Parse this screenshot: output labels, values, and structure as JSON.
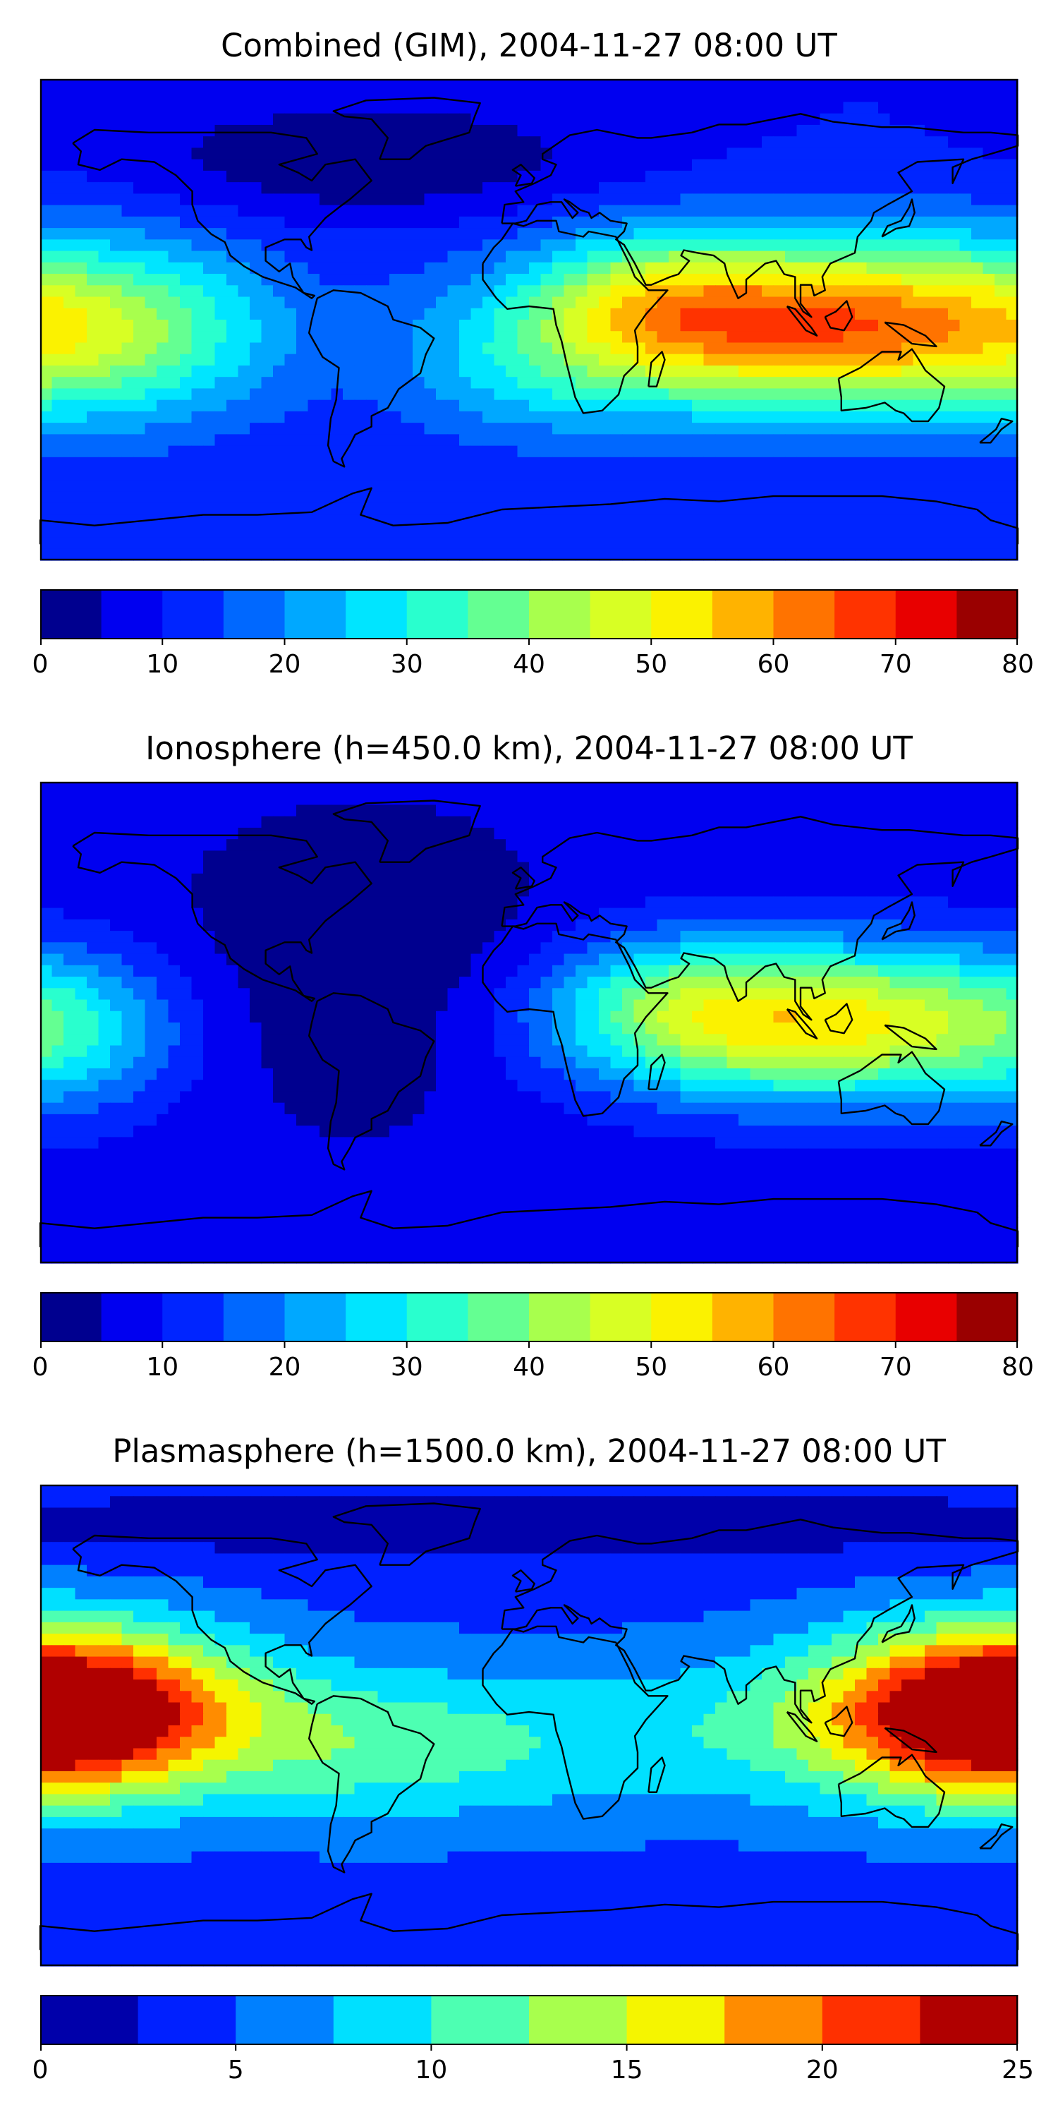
{
  "panels": [
    {
      "title": "Combined (GIM), 2004-11-27 08:00 UT",
      "colorbar": {
        "min": 0,
        "max": 80,
        "step": 5,
        "ticks": [
          "0",
          "10",
          "20",
          "30",
          "40",
          "50",
          "60",
          "70",
          "80"
        ]
      },
      "field": {
        "base": 10,
        "blobs": [
          {
            "lon": 105,
            "lat": -2,
            "amp": 54,
            "slon": 68,
            "slat": 22
          },
          {
            "lon": 45,
            "lat": 8,
            "amp": 14,
            "slon": 30,
            "slat": 18
          },
          {
            "lon": -150,
            "lat": -5,
            "amp": 20,
            "slon": 45,
            "slat": 25
          },
          {
            "lon": 0,
            "lat": -20,
            "amp": 10,
            "slon": 35,
            "slat": 20
          },
          {
            "lon": -60,
            "lat": 60,
            "amp": -10,
            "slon": 60,
            "slat": 15
          }
        ]
      }
    },
    {
      "title": "Ionosphere  (h=450.0 km), 2004-11-27 08:00 UT",
      "colorbar": {
        "min": 0,
        "max": 80,
        "step": 5,
        "ticks": [
          "0",
          "10",
          "20",
          "30",
          "40",
          "50",
          "60",
          "70",
          "80"
        ]
      },
      "field": {
        "base": 7,
        "blobs": [
          {
            "lon": 105,
            "lat": 0,
            "amp": 46,
            "slon": 60,
            "slat": 20
          },
          {
            "lon": 50,
            "lat": 10,
            "amp": 10,
            "slon": 30,
            "slat": 18
          },
          {
            "lon": -170,
            "lat": -5,
            "amp": 12,
            "slon": 30,
            "slat": 22
          },
          {
            "lon": -60,
            "lat": 20,
            "amp": -7,
            "slon": 50,
            "slat": 40
          }
        ]
      }
    },
    {
      "title": "Plasmasphere (h=1500.0 km), 2004-11-27 08:00 UT",
      "colorbar": {
        "min": 0,
        "max": 25,
        "step": 2.5,
        "ticks": [
          "0",
          "5",
          "10",
          "15",
          "20",
          "25"
        ]
      },
      "field": {
        "base": 4,
        "blobs": [
          {
            "lon": -180,
            "lat": 5,
            "amp": 14,
            "slon": 50,
            "slat": 22
          },
          {
            "lon": 180,
            "lat": 5,
            "amp": 14,
            "slon": 50,
            "slat": 22
          },
          {
            "lon": 20,
            "lat": -5,
            "amp": 5,
            "slon": 80,
            "slat": 22
          },
          {
            "lon": -60,
            "lat": -10,
            "amp": 4,
            "slon": 40,
            "slat": 20
          },
          {
            "lon": 0,
            "lat": 75,
            "amp": -3,
            "slon": 200,
            "slat": 10
          }
        ]
      }
    }
  ],
  "colors": {
    "jet16": [
      "#00008f",
      "#0000f0",
      "#0025ff",
      "#0068ff",
      "#00a8ff",
      "#00e5ff",
      "#29ffce",
      "#64ff92",
      "#a8ff4d",
      "#d8ff24",
      "#fbf200",
      "#ffb300",
      "#ff7300",
      "#ff3300",
      "#e80000",
      "#9a0000"
    ],
    "jet10": [
      "#0000aa",
      "#0020ff",
      "#0080ff",
      "#00e0ff",
      "#4dffb2",
      "#a8ff4d",
      "#f5f500",
      "#ff8c00",
      "#ff3000",
      "#b00000"
    ],
    "coast": "#000000"
  }
}
